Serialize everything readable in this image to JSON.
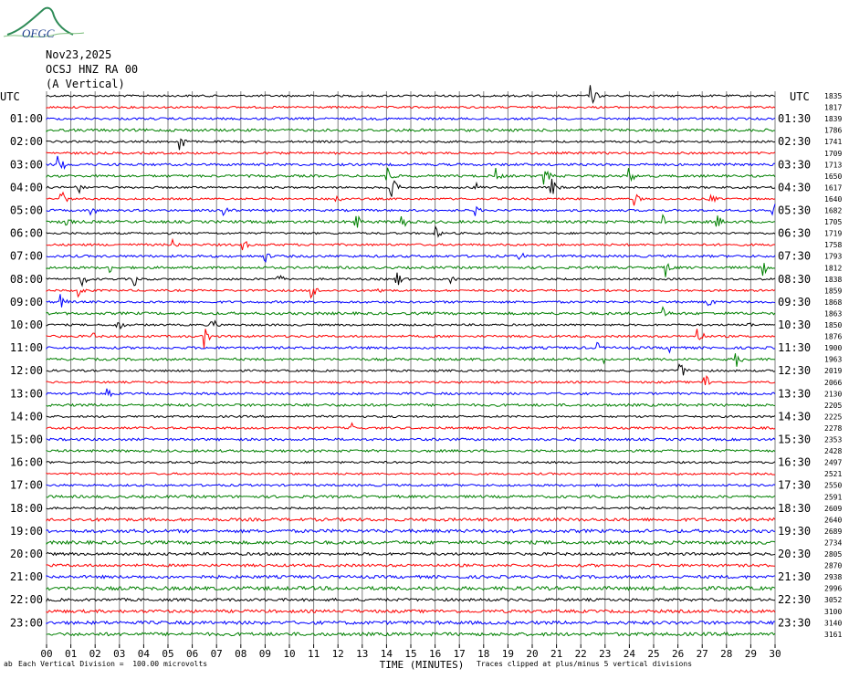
{
  "logo_text": "OFGC",
  "header": {
    "date": "Nov23,2025",
    "station": "OCSJ HNZ RA 00",
    "component": "(A Vertical)"
  },
  "utc_left": "UTC",
  "utc_right": "UTC",
  "cal_mark": "ab",
  "left_times": [
    "",
    "01:00",
    "02:00",
    "03:00",
    "04:00",
    "05:00",
    "06:00",
    "07:00",
    "08:00",
    "09:00",
    "10:00",
    "11:00",
    "12:00",
    "13:00",
    "14:00",
    "15:00",
    "16:00",
    "17:00",
    "18:00",
    "19:00",
    "20:00",
    "21:00",
    "22:00",
    "23:00"
  ],
  "right_times": [
    "",
    "01:30",
    "02:30",
    "03:30",
    "04:30",
    "05:30",
    "06:30",
    "07:30",
    "08:30",
    "09:30",
    "10:30",
    "11:30",
    "12:30",
    "13:30",
    "14:30",
    "15:30",
    "16:30",
    "17:30",
    "18:30",
    "19:30",
    "20:30",
    "21:30",
    "22:30",
    "23:30"
  ],
  "rms_values": [
    "1835",
    "1817",
    "1839",
    "1786",
    "1741",
    "1709",
    "1713",
    "1650",
    "1617",
    "1640",
    "1682",
    "1705",
    "1719",
    "1758",
    "1793",
    "1812",
    "1838",
    "1859",
    "1868",
    "1863",
    "1850",
    "1876",
    "1900",
    "1963",
    "2019",
    "2066",
    "2130",
    "2205",
    "2225",
    "2278",
    "2353",
    "2428",
    "2497",
    "2521",
    "2550",
    "2591",
    "2609",
    "2640",
    "2689",
    "2734",
    "2805",
    "2870",
    "2938",
    "2996",
    "3052",
    "3100",
    "3140",
    "3161"
  ],
  "x_ticks": [
    "00",
    "01",
    "02",
    "03",
    "04",
    "05",
    "06",
    "07",
    "08",
    "09",
    "10",
    "11",
    "12",
    "13",
    "14",
    "15",
    "16",
    "17",
    "18",
    "19",
    "20",
    "21",
    "22",
    "23",
    "24",
    "25",
    "26",
    "27",
    "28",
    "29",
    "30"
  ],
  "x_label": "TIME (MINUTES)",
  "footer_left": "Each Vertical Division =  100.00 microvolts",
  "footer_right": "Traces clipped at plus/minus 5 vertical divisions",
  "colors": {
    "black": "#000000",
    "red": "#ff0000",
    "blue": "#0000ff",
    "green": "#008000",
    "grid": "#808080"
  },
  "chart_data": {
    "type": "line",
    "traces_per_row": 48,
    "minutes_per_trace": 30,
    "x_range": [
      0,
      30
    ],
    "color_cycle": [
      "black",
      "red",
      "blue",
      "green"
    ],
    "events": [
      {
        "trace": 0,
        "minute": 22.4,
        "amp": 14
      },
      {
        "trace": 4,
        "minute": 5.5,
        "amp": 12
      },
      {
        "trace": 6,
        "minute": 0.5,
        "amp": 14
      },
      {
        "trace": 7,
        "minute": 14.0,
        "amp": 14
      },
      {
        "trace": 7,
        "minute": 20.5,
        "amp": 12
      },
      {
        "trace": 7,
        "minute": 24.0,
        "amp": 10
      },
      {
        "trace": 7,
        "minute": 18.5,
        "amp": 9
      },
      {
        "trace": 8,
        "minute": 1.2,
        "amp": 14
      },
      {
        "trace": 8,
        "minute": 14.2,
        "amp": 14
      },
      {
        "trace": 8,
        "minute": 20.8,
        "amp": 12
      },
      {
        "trace": 8,
        "minute": 17.6,
        "amp": 10
      },
      {
        "trace": 9,
        "minute": 0.6,
        "amp": 11
      },
      {
        "trace": 9,
        "minute": 11.9,
        "amp": 8
      },
      {
        "trace": 9,
        "minute": 27.3,
        "amp": 9
      },
      {
        "trace": 9,
        "minute": 24.2,
        "amp": 8
      },
      {
        "trace": 10,
        "minute": 1.8,
        "amp": 10
      },
      {
        "trace": 10,
        "minute": 7.3,
        "amp": 14
      },
      {
        "trace": 10,
        "minute": 29.9,
        "amp": 14
      },
      {
        "trace": 10,
        "minute": 17.6,
        "amp": 8
      },
      {
        "trace": 11,
        "minute": 0.8,
        "amp": 8
      },
      {
        "trace": 11,
        "minute": 12.7,
        "amp": 12
      },
      {
        "trace": 11,
        "minute": 14.6,
        "amp": 12
      },
      {
        "trace": 11,
        "minute": 25.4,
        "amp": 9
      },
      {
        "trace": 11,
        "minute": 27.6,
        "amp": 9
      },
      {
        "trace": 12,
        "minute": 16.0,
        "amp": 8
      },
      {
        "trace": 13,
        "minute": 8.1,
        "amp": 7
      },
      {
        "trace": 13,
        "minute": 5.2,
        "amp": 6
      },
      {
        "trace": 14,
        "minute": 9.0,
        "amp": 7
      },
      {
        "trace": 14,
        "minute": 19.5,
        "amp": 6
      },
      {
        "trace": 15,
        "minute": 25.5,
        "amp": 11
      },
      {
        "trace": 15,
        "minute": 29.5,
        "amp": 9
      },
      {
        "trace": 15,
        "minute": 2.6,
        "amp": 6
      },
      {
        "trace": 16,
        "minute": 1.4,
        "amp": 11
      },
      {
        "trace": 16,
        "minute": 3.6,
        "amp": 9
      },
      {
        "trace": 16,
        "minute": 9.5,
        "amp": 9
      },
      {
        "trace": 16,
        "minute": 14.4,
        "amp": 12
      },
      {
        "trace": 16,
        "minute": 16.6,
        "amp": 7
      },
      {
        "trace": 17,
        "minute": 1.3,
        "amp": 9
      },
      {
        "trace": 17,
        "minute": 10.9,
        "amp": 11
      },
      {
        "trace": 17,
        "minute": 13.6,
        "amp": 9
      },
      {
        "trace": 18,
        "minute": 0.6,
        "amp": 9
      },
      {
        "trace": 18,
        "minute": 27.2,
        "amp": 9
      },
      {
        "trace": 19,
        "minute": 25.4,
        "amp": 8
      },
      {
        "trace": 20,
        "minute": 2.9,
        "amp": 9
      },
      {
        "trace": 20,
        "minute": 6.8,
        "amp": 9
      },
      {
        "trace": 20,
        "minute": 28.8,
        "amp": 6
      },
      {
        "trace": 21,
        "minute": 6.5,
        "amp": 13
      },
      {
        "trace": 21,
        "minute": 26.8,
        "amp": 12
      },
      {
        "trace": 21,
        "minute": 1.9,
        "amp": 5
      },
      {
        "trace": 22,
        "minute": 22.7,
        "amp": 6
      },
      {
        "trace": 22,
        "minute": 25.7,
        "amp": 8
      },
      {
        "trace": 23,
        "minute": 28.4,
        "amp": 11
      },
      {
        "trace": 23,
        "minute": 23.0,
        "amp": 6
      },
      {
        "trace": 24,
        "minute": 26.1,
        "amp": 11
      },
      {
        "trace": 25,
        "minute": 27.1,
        "amp": 12
      },
      {
        "trace": 26,
        "minute": 2.5,
        "amp": 6
      },
      {
        "trace": 29,
        "minute": 12.6,
        "amp": 6
      }
    ]
  }
}
